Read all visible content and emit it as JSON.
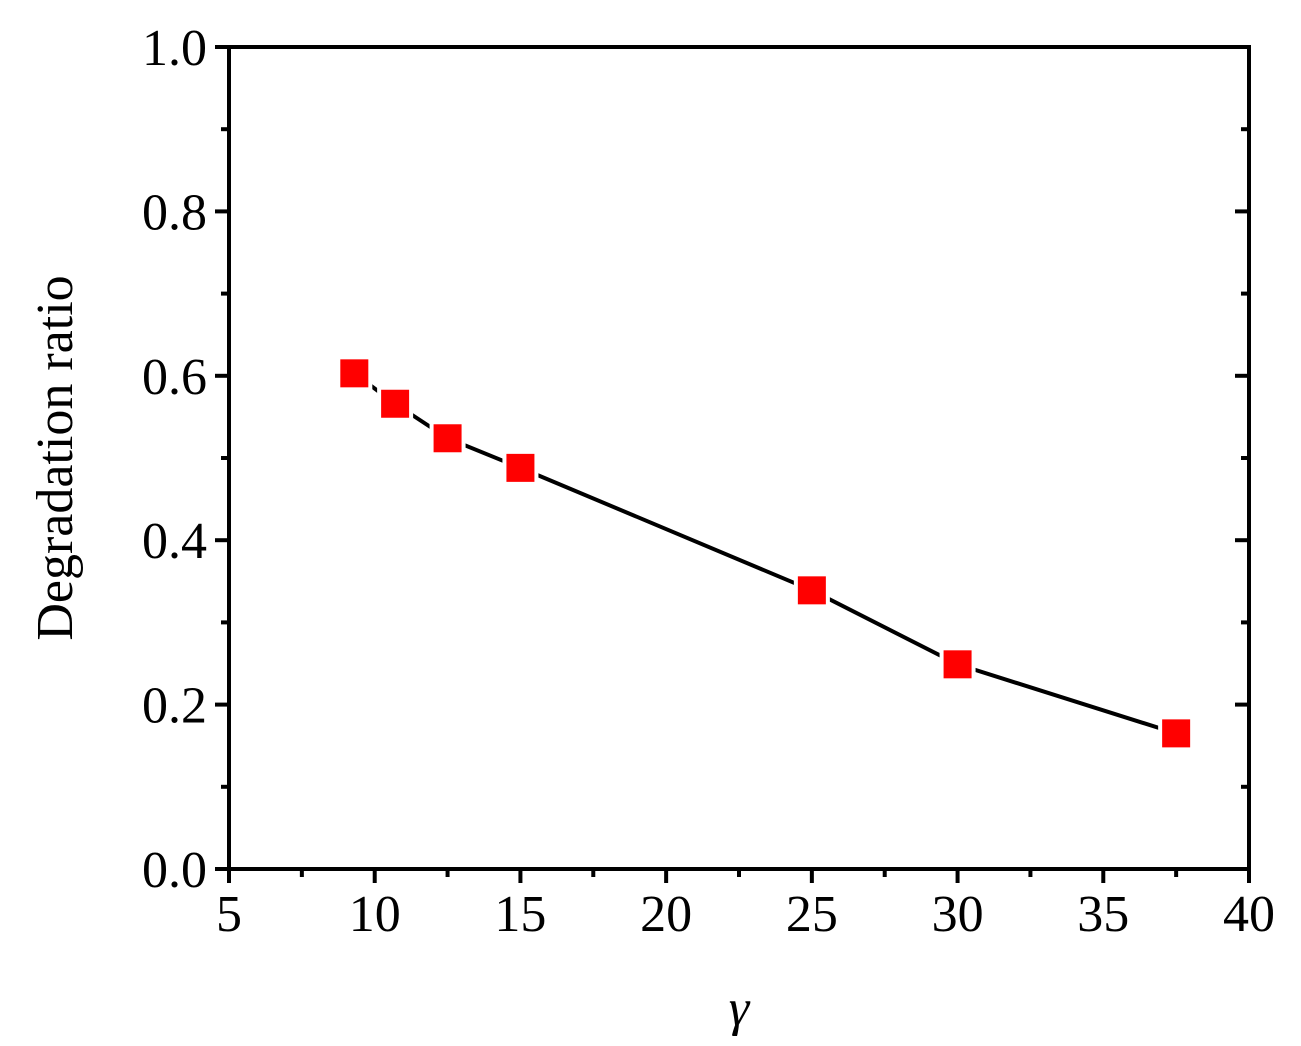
{
  "chart_data": {
    "type": "line",
    "xlabel": "γ",
    "ylabel": "Degradation ratio",
    "x": [
      9.3,
      10.7,
      12.5,
      15,
      25,
      30,
      37.5
    ],
    "series": [
      {
        "color": "#ff0000",
        "line_color": "#000000",
        "marker": "square",
        "values": [
          0.603,
          0.566,
          0.524,
          0.488,
          0.339,
          0.249,
          0.165
        ]
      }
    ],
    "xlim": [
      5,
      40
    ],
    "xticks": [
      5,
      10,
      15,
      20,
      25,
      30,
      35,
      40
    ],
    "ylim": [
      0,
      1
    ],
    "yticks": [
      {
        "value": 0,
        "label": "0.0"
      },
      0.2,
      0.4,
      0.6,
      0.8,
      {
        "value": 1,
        "label": "1.0"
      }
    ],
    "grid": false
  }
}
